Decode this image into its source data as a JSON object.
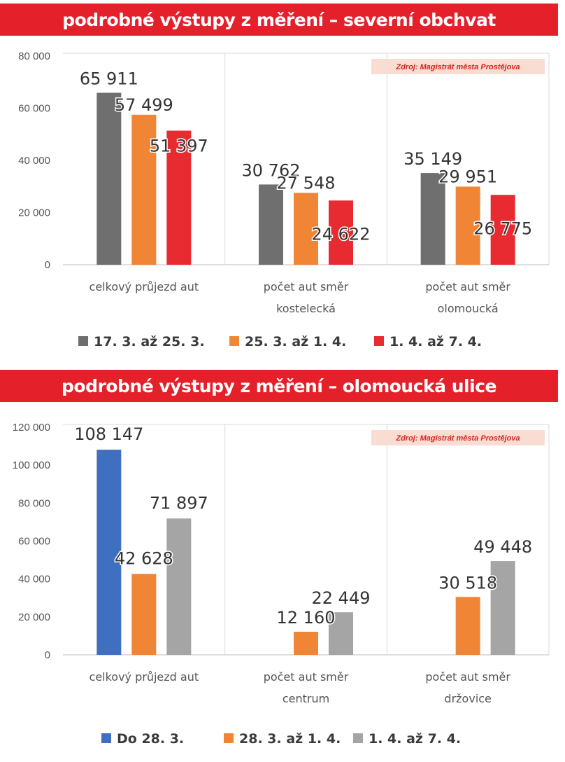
{
  "chart_data": [
    {
      "type": "bar",
      "title": "podrobné výstupy z měření – severní obchvat",
      "source": "Zdroj: Magistrát města Prostějova",
      "categories": [
        [
          "celkový průjezd aut"
        ],
        [
          "počet aut směr",
          "kostelecká"
        ],
        [
          "počet aut směr",
          "olomoucká"
        ]
      ],
      "ylim": [
        0,
        80000
      ],
      "yticks": [
        "0",
        "20 000",
        "40 000",
        "60 000",
        "80 000"
      ],
      "ytick_values": [
        0,
        20000,
        40000,
        60000,
        80000
      ],
      "grid": true,
      "legend_position": "bottom",
      "series": [
        {
          "name": "17. 3. až 25. 3.",
          "color": "#6f6f6f",
          "values": [
            65911,
            30762,
            35149
          ],
          "labels": [
            "65 911",
            "30 762",
            "35 149"
          ]
        },
        {
          "name": "25. 3. až 1. 4.",
          "color": "#f08536",
          "values": [
            57499,
            27548,
            29951
          ],
          "labels": [
            "57 499",
            "27 548",
            "29 951"
          ]
        },
        {
          "name": "1. 4. až 7. 4.",
          "color": "#e72b31",
          "values": [
            51397,
            24622,
            26775
          ],
          "labels": [
            "51 397",
            "24 622",
            "26 775"
          ]
        }
      ]
    },
    {
      "type": "bar",
      "title": "podrobné výstupy z měření – olomoucká ulice",
      "source": "Zdroj: Magistrát města Prostějova",
      "categories": [
        [
          "celkový průjezd aut"
        ],
        [
          "počet aut směr",
          "centrum"
        ],
        [
          "počet aut směr",
          "držovice"
        ]
      ],
      "ylim": [
        0,
        120000
      ],
      "yticks": [
        "0",
        "20 000",
        "40 000",
        "60 000",
        "80 000",
        "100 000",
        "120 000"
      ],
      "ytick_values": [
        0,
        20000,
        40000,
        60000,
        80000,
        100000,
        120000
      ],
      "grid": true,
      "legend_position": "bottom",
      "series": [
        {
          "name": "Do 28. 3.",
          "color": "#3f6fbf",
          "values": [
            108147,
            null,
            null
          ],
          "labels": [
            "108 147",
            "",
            ""
          ]
        },
        {
          "name": "28. 3. až 1. 4.",
          "color": "#f08536",
          "values": [
            42628,
            12160,
            30518
          ],
          "labels": [
            "42 628",
            "12 160",
            "30 518"
          ]
        },
        {
          "name": "1. 4. až 7. 4.",
          "color": "#a5a5a5",
          "values": [
            71897,
            22449,
            49448
          ],
          "labels": [
            "71 897",
            "22 449",
            "49 448"
          ]
        }
      ]
    }
  ]
}
